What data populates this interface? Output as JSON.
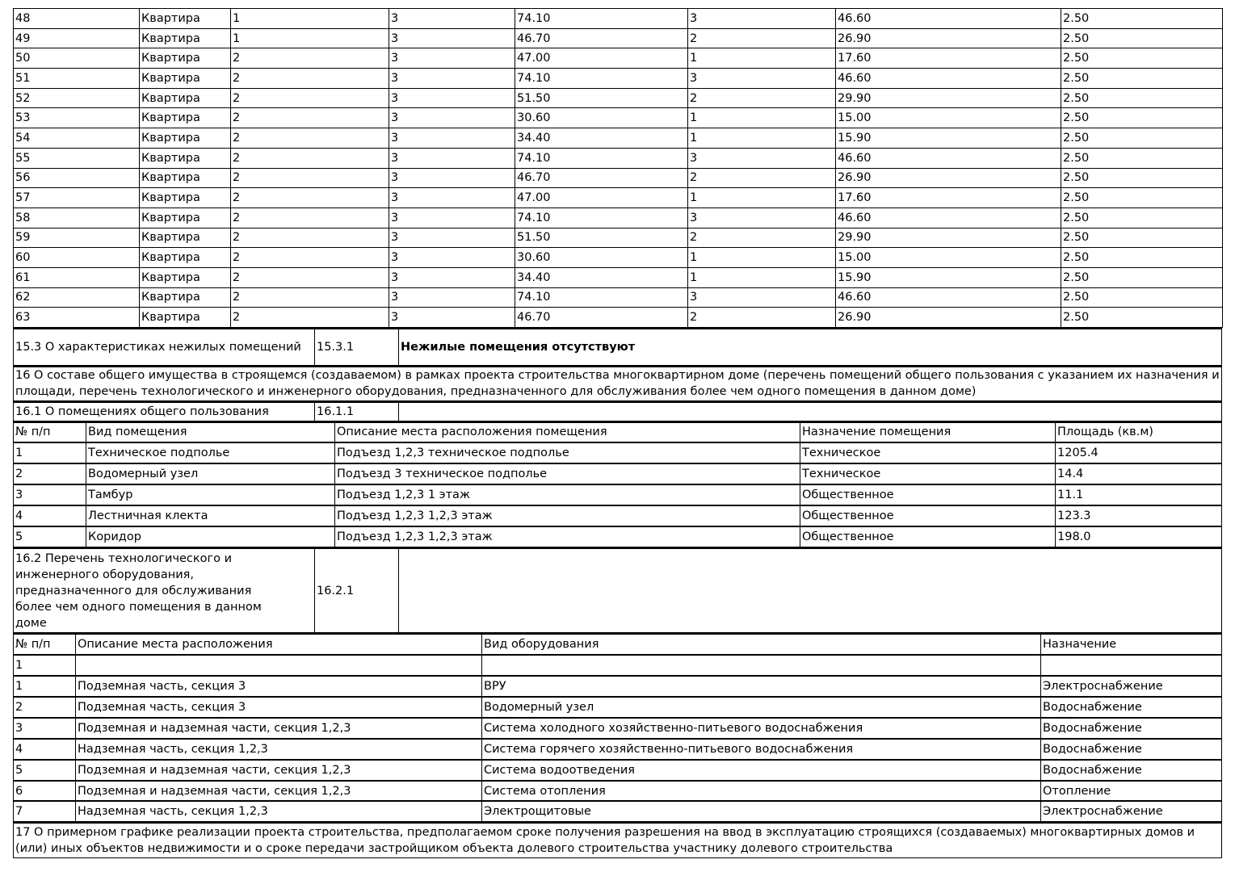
{
  "flats": [
    [
      "48",
      "Квартира",
      "1",
      "3",
      "74.10",
      "3",
      "46.60",
      "2.50"
    ],
    [
      "49",
      "Квартира",
      "1",
      "3",
      "46.70",
      "2",
      "26.90",
      "2.50"
    ],
    [
      "50",
      "Квартира",
      "2",
      "3",
      "47.00",
      "1",
      "17.60",
      "2.50"
    ],
    [
      "51",
      "Квартира",
      "2",
      "3",
      "74.10",
      "3",
      "46.60",
      "2.50"
    ],
    [
      "52",
      "Квартира",
      "2",
      "3",
      "51.50",
      "2",
      "29.90",
      "2.50"
    ],
    [
      "53",
      "Квартира",
      "2",
      "3",
      "30.60",
      "1",
      "15.00",
      "2.50"
    ],
    [
      "54",
      "Квартира",
      "2",
      "3",
      "34.40",
      "1",
      "15.90",
      "2.50"
    ],
    [
      "55",
      "Квартира",
      "2",
      "3",
      "74.10",
      "3",
      "46.60",
      "2.50"
    ],
    [
      "56",
      "Квартира",
      "2",
      "3",
      "46.70",
      "2",
      "26.90",
      "2.50"
    ],
    [
      "57",
      "Квартира",
      "2",
      "3",
      "47.00",
      "1",
      "17.60",
      "2.50"
    ],
    [
      "58",
      "Квартира",
      "2",
      "3",
      "74.10",
      "3",
      "46.60",
      "2.50"
    ],
    [
      "59",
      "Квартира",
      "2",
      "3",
      "51.50",
      "2",
      "29.90",
      "2.50"
    ],
    [
      "60",
      "Квартира",
      "2",
      "3",
      "30.60",
      "1",
      "15.00",
      "2.50"
    ],
    [
      "61",
      "Квартира",
      "2",
      "3",
      "34.40",
      "1",
      "15.90",
      "2.50"
    ],
    [
      "62",
      "Квартира",
      "2",
      "3",
      "74.10",
      "3",
      "46.60",
      "2.50"
    ],
    [
      "63",
      "Квартира",
      "2",
      "3",
      "46.70",
      "2",
      "26.90",
      "2.50"
    ]
  ],
  "s15_3": {
    "label": "15.3 О характеристиках нежилых помещений",
    "code": "15.3.1",
    "value": "Нежилые помещения отсутствуют"
  },
  "s16": {
    "text": "16 О составе общего имущества в строящемся (создаваемом) в рамках проекта строительства многоквартирном доме (перечень помещений общего пользования с указанием их назначения и площади, перечень технологического и инженерного оборудования, предназначенного для обслуживания более чем одного помещения в данном доме)"
  },
  "s16_1": {
    "label": "16.1 О помещениях общего пользования",
    "code": "16.1.1"
  },
  "rooms": {
    "headers": [
      "№ п/п",
      "Вид помещения",
      "Описание места расположения помещения",
      "Назначение помещения",
      "Площадь (кв.м)"
    ],
    "rows": [
      [
        "1",
        "Техническое подполье",
        "Подъезд 1,2,3 техническое подполье",
        "Техническое",
        "1205.4"
      ],
      [
        "2",
        "Водомерный узел",
        "Подъезд 3 техническое подполье",
        "Техническое",
        "14.4"
      ],
      [
        "3",
        "Тамбур",
        "Подъезд 1,2,3 1 этаж",
        "Общественное",
        "11.1"
      ],
      [
        "4",
        "Лестничная клекта",
        "Подъезд 1,2,3 1,2,3 этаж",
        "Общественное",
        "123.3"
      ],
      [
        "5",
        "Коридор",
        "Подъезд 1,2,3 1,2,3 этаж",
        "Общественное",
        "198.0"
      ]
    ]
  },
  "s16_2": {
    "label": "16.2 Перечень технологического и инженерного оборудования, предназначенного для обслуживания более чем одного помещения в данном доме",
    "code": "16.2.1"
  },
  "equipment": {
    "headers": [
      "№ п/п",
      "Описание места расположения",
      "Вид оборудования",
      "Назначение"
    ],
    "rows": [
      [
        "1",
        "",
        "",
        ""
      ],
      [
        "1",
        "Подземная часть, секция 3",
        "ВРУ",
        "Электроснабжение"
      ],
      [
        "2",
        "Подземная часть, секция 3",
        "Водомерный узел",
        "Водоснабжение"
      ],
      [
        "3",
        "Подземная и надземная части, секция 1,2,3",
        "Система холодного хозяйственно-питьевого водоснабжения",
        "Водоснабжение"
      ],
      [
        "4",
        "Надземная часть, секция 1,2,3",
        "Система горячего хозяйственно-питьевого водоснабжения",
        "Водоснабжение"
      ],
      [
        "5",
        "Подземная и надземная части, секция 1,2,3",
        "Система водоотведения",
        "Водоснабжение"
      ],
      [
        "6",
        "Подземная и надземная части, секция 1,2,3",
        "Система отопления",
        "Отопление"
      ],
      [
        "7",
        "Надземная часть, секция 1,2,3",
        "Электрощитовые",
        "Электроснабжение"
      ]
    ]
  },
  "s17": {
    "text": "17 О примерном графике реализации проекта строительства, предполагаемом сроке получения разрешения на ввод в эксплуатацию строящихся (создаваемых) многоквартирных домов и (или) иных объектов недвижимости и о сроке передачи застройщиком объекта долевого строительства участнику долевого строительства"
  }
}
